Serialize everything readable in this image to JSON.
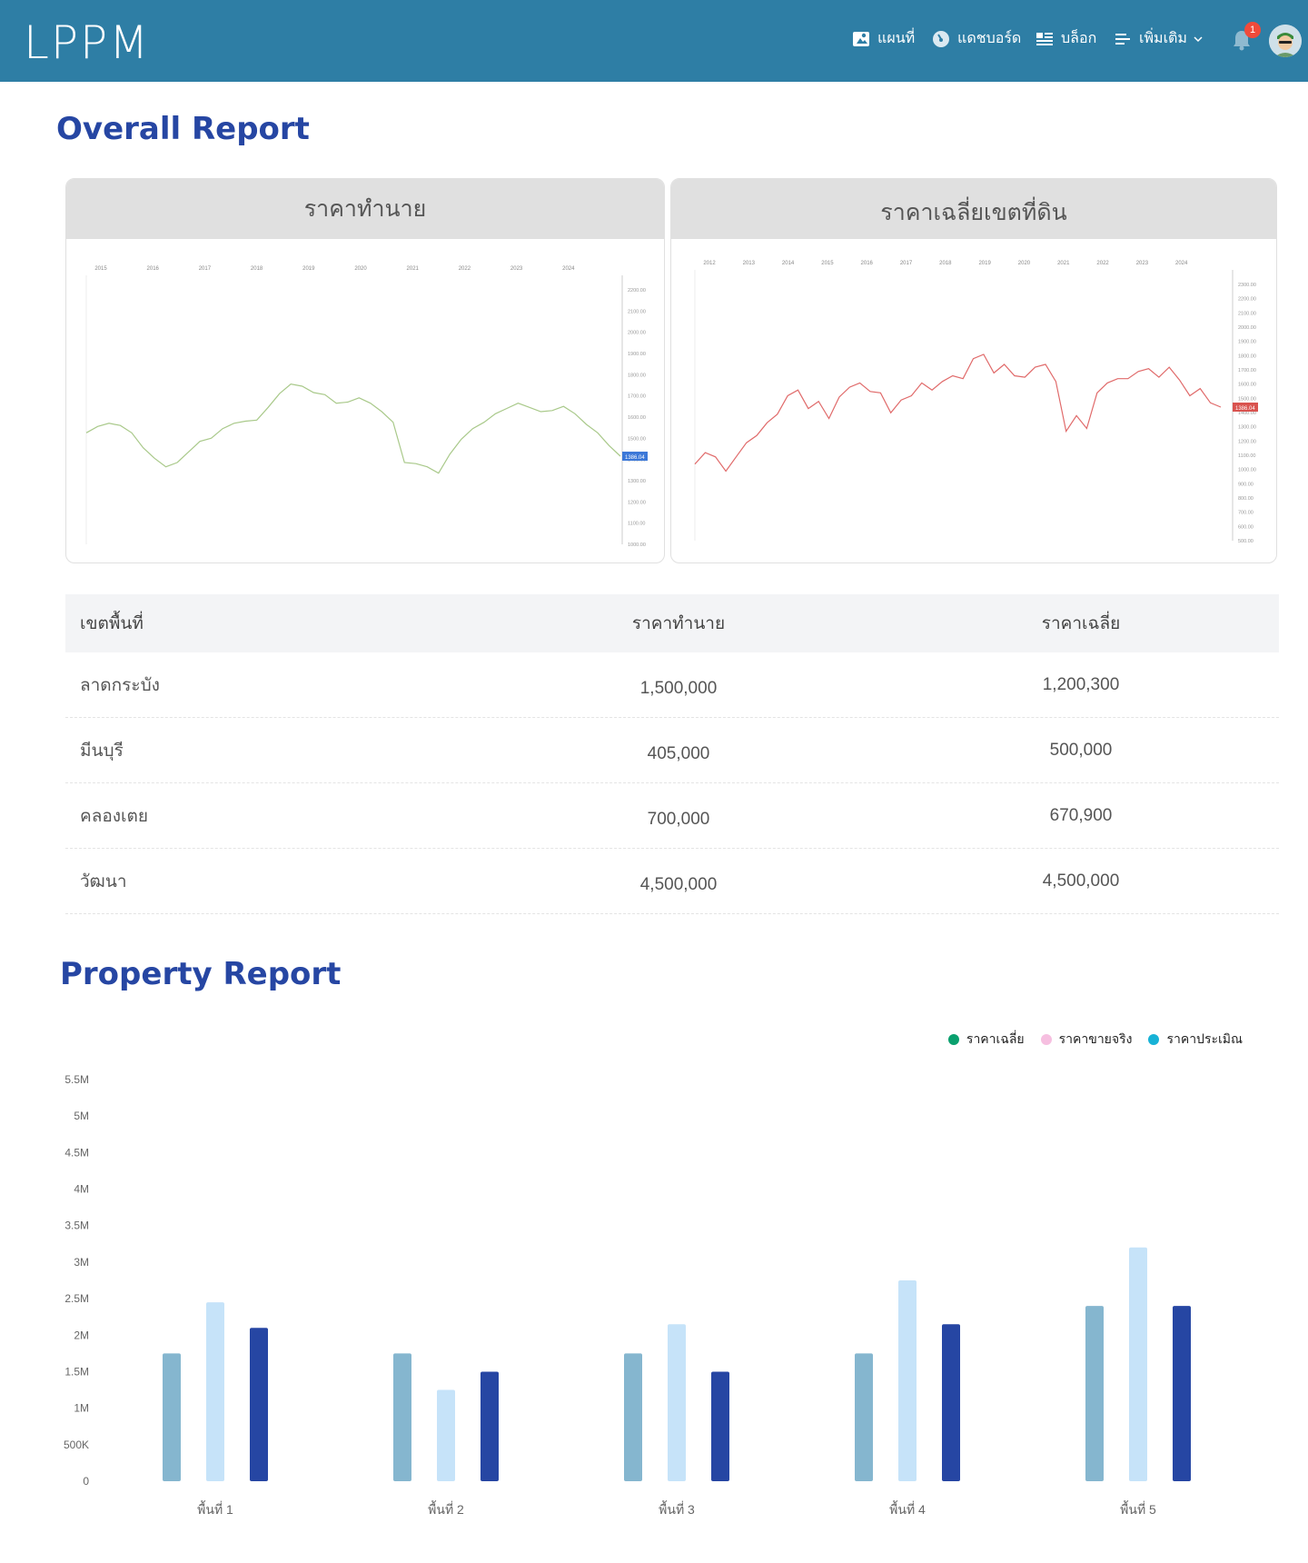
{
  "header": {
    "logo": "LPPM",
    "nav": [
      {
        "label": "แผนที่",
        "icon": "map-icon"
      },
      {
        "label": "แดชบอร์ด",
        "icon": "dashboard-icon"
      },
      {
        "label": "บล็อก",
        "icon": "blog-icon"
      },
      {
        "label": "เพิ่มเติม",
        "icon": "menu-icon"
      }
    ],
    "notification_count": "1"
  },
  "overall": {
    "title": "Overall Report",
    "card1_title": "ราคาทำนาย",
    "card2_title": "ราคาเฉลี่ยเขตที่ดิน",
    "table": {
      "headers": [
        "เขตพื้นที่",
        "ราคาทำนาย",
        "ราคาเฉลี่ย"
      ],
      "rows": [
        [
          "ลาดกระบัง",
          "1,500,000",
          "1,200,300"
        ],
        [
          "มีนบุรี",
          "405,000",
          "500,000"
        ],
        [
          "คลองเตย",
          "700,000",
          "670,900"
        ],
        [
          "วัฒนา",
          "4,500,000",
          "4,500,000"
        ]
      ]
    }
  },
  "property": {
    "title": "Property Report",
    "legend": [
      {
        "label": "ราคาเฉลี่ย",
        "color": "#0aa06e"
      },
      {
        "label": "ราคาขายจริง",
        "color": "#f6bfe0"
      },
      {
        "label": "ราคาประเมิณ",
        "color": "#17b2d6"
      }
    ]
  },
  "chart_data": [
    {
      "type": "line",
      "title": "ราคาทำนาย",
      "x_ticks": [
        "2015",
        "2016",
        "2017",
        "2018",
        "2019",
        "2020",
        "2021",
        "2022",
        "2023",
        "2024"
      ],
      "y_ticks": [
        "2200.00",
        "2100.00",
        "2000.00",
        "1900.00",
        "1800.00",
        "1700.00",
        "1600.00",
        "1500.00",
        "1400.00",
        "1300.00",
        "1200.00",
        "1100.00",
        "1000.00"
      ],
      "last_value_label": "1386.04",
      "color": "#a9c98a",
      "series": [
        {
          "values": [
            1500,
            1530,
            1545,
            1535,
            1500,
            1430,
            1380,
            1340,
            1360,
            1410,
            1460,
            1475,
            1520,
            1545,
            1555,
            1560,
            1620,
            1685,
            1730,
            1720,
            1690,
            1680,
            1640,
            1645,
            1665,
            1640,
            1600,
            1550,
            1360,
            1355,
            1340,
            1310,
            1400,
            1470,
            1520,
            1550,
            1590,
            1615,
            1640,
            1620,
            1600,
            1605,
            1625,
            1590,
            1540,
            1500,
            1440,
            1390
          ]
        }
      ]
    },
    {
      "type": "line",
      "title": "ราคาเฉลี่ยเขตที่ดิน",
      "x_ticks": [
        "2012",
        "2013",
        "2014",
        "2015",
        "2016",
        "2017",
        "2018",
        "2019",
        "2020",
        "2021",
        "2022",
        "2023",
        "2024"
      ],
      "y_ticks": [
        "2300.00",
        "2200.00",
        "2100.00",
        "2000.00",
        "1900.00",
        "1800.00",
        "1700.00",
        "1600.00",
        "1500.00",
        "1400.00",
        "1300.00",
        "1200.00",
        "1100.00",
        "1000.00",
        "900.00",
        "800.00",
        "700.00",
        "600.00",
        "500.00"
      ],
      "last_value_label": "1386.04",
      "color": "#e06a6a",
      "series": [
        {
          "values": [
            1000,
            1080,
            1050,
            950,
            1050,
            1150,
            1200,
            1290,
            1350,
            1480,
            1520,
            1390,
            1440,
            1320,
            1470,
            1540,
            1570,
            1510,
            1500,
            1360,
            1450,
            1480,
            1570,
            1520,
            1580,
            1620,
            1600,
            1740,
            1770,
            1640,
            1700,
            1620,
            1610,
            1680,
            1700,
            1580,
            1230,
            1340,
            1250,
            1500,
            1570,
            1600,
            1600,
            1650,
            1670,
            1610,
            1680,
            1590,
            1480,
            1530,
            1430,
            1400
          ]
        }
      ]
    },
    {
      "type": "bar",
      "title": "",
      "categories": [
        "พื้นที่ 1",
        "พื้นที่ 2",
        "พื้นที่ 3",
        "พื้นที่ 4",
        "พื้นที่ 5"
      ],
      "y_ticks": [
        "0",
        "500K",
        "1M",
        "1.5M",
        "2M",
        "2.5M",
        "3M",
        "3.5M",
        "4M",
        "4.5M",
        "5M",
        "5.5M"
      ],
      "ylim": [
        0,
        5500000
      ],
      "series": [
        {
          "name": "ราคาเฉลี่ย",
          "color": "#85b6cf",
          "values": [
            1750000,
            1750000,
            1750000,
            1750000,
            2400000
          ]
        },
        {
          "name": "ราคาขายจริง",
          "color": "#c6e3f9",
          "values": [
            2450000,
            1250000,
            2150000,
            2750000,
            3200000
          ]
        },
        {
          "name": "ราคาประเมิณ",
          "color": "#2646a3",
          "values": [
            2100000,
            1500000,
            1500000,
            2150000,
            2400000
          ]
        }
      ]
    }
  ]
}
